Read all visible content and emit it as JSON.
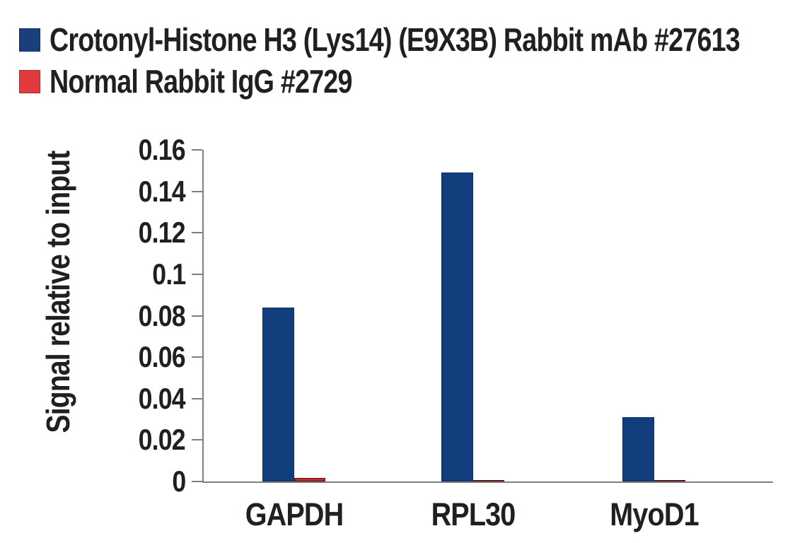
{
  "legend": {
    "items": [
      {
        "label": "Crotonyl-Histone H3 (Lys14) (E9X3B) Rabbit mAb #27613",
        "color": "#1b3e7c"
      },
      {
        "label": "Normal Rabbit IgG #2729",
        "color": "#e23b3e"
      }
    ]
  },
  "chart_data": {
    "type": "bar",
    "title": "",
    "categories": [
      "GAPDH",
      "RPL30",
      "MyoD1"
    ],
    "series": [
      {
        "name": "Crotonyl-Histone H3 (Lys14) (E9X3B) Rabbit mAb #27613",
        "color": "#123e7e",
        "values": [
          0.084,
          0.149,
          0.031
        ]
      },
      {
        "name": "Normal Rabbit IgG #2729",
        "color": "#c5262c",
        "values": [
          0.0017,
          0.0007,
          0.0005
        ]
      }
    ],
    "xlabel": "",
    "ylabel": "Signal relative to input",
    "ylim": [
      0,
      0.16
    ],
    "yticks": [
      0,
      0.02,
      0.04,
      0.06,
      0.08,
      0.1,
      0.12,
      0.14,
      0.16
    ],
    "ytick_labels": [
      "0",
      "0.02",
      "0.04",
      "0.06",
      "0.08",
      "0.1",
      "0.12",
      "0.14",
      "0.16"
    ],
    "grid": false,
    "legend_position": "top-left",
    "axis_color": "#7f7f7f",
    "text_color": "#231f20"
  }
}
